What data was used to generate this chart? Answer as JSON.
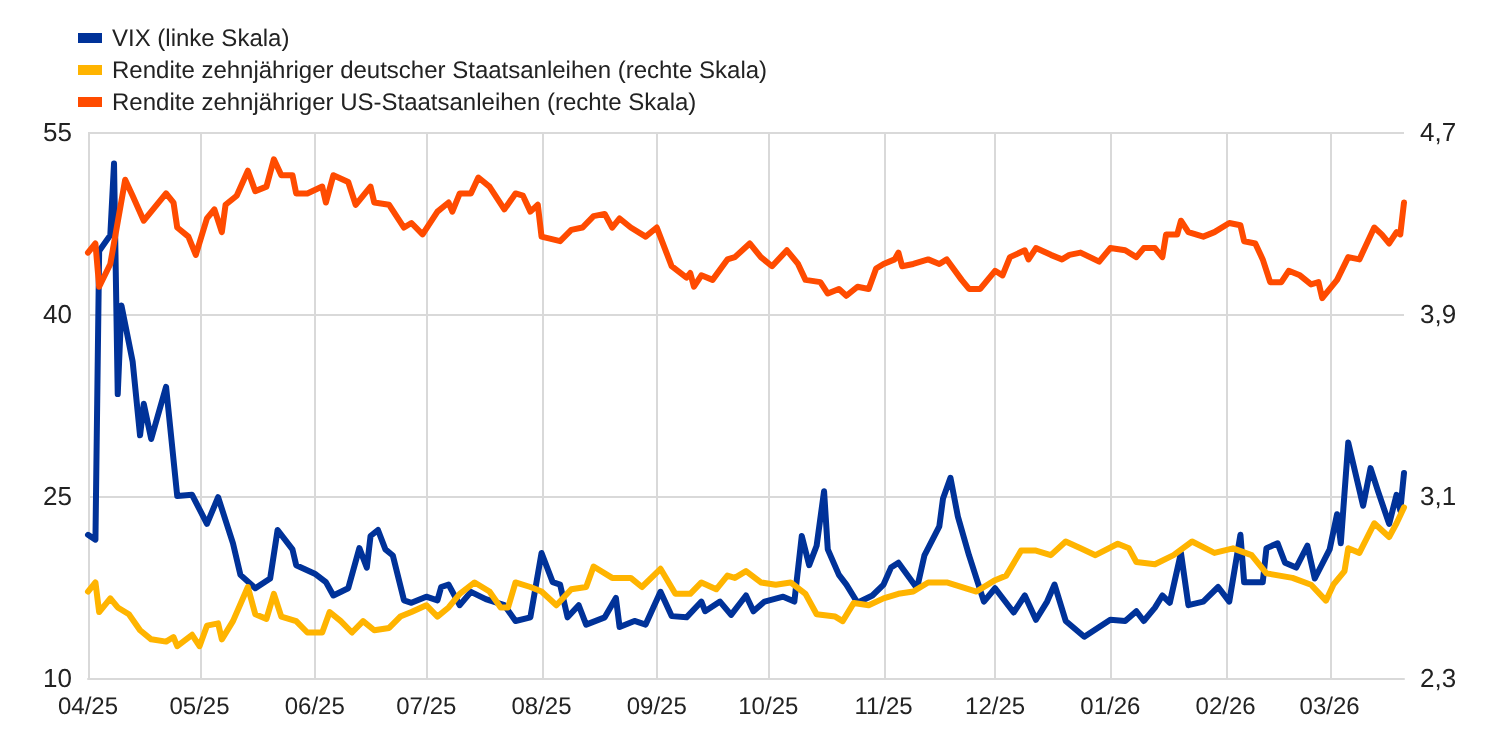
{
  "chart_data": {
    "type": "line",
    "legend": "top left",
    "grid": true,
    "marker": "none",
    "line_style": "solid",
    "xlim": [
      "2025-04-01",
      "2026-03-21"
    ],
    "xticks": [
      {
        "value": "2025-04-01",
        "label": "04/25"
      },
      {
        "value": "2025-05-01",
        "label": "05/25"
      },
      {
        "value": "2025-06-01",
        "label": "06/25"
      },
      {
        "value": "2025-07-01",
        "label": "07/25"
      },
      {
        "value": "2025-08-01",
        "label": "08/25"
      },
      {
        "value": "2025-09-01",
        "label": "09/25"
      },
      {
        "value": "2025-10-01",
        "label": "10/25"
      },
      {
        "value": "2025-11-01",
        "label": "11/25"
      },
      {
        "value": "2025-12-01",
        "label": "12/25"
      },
      {
        "value": "2026-01-01",
        "label": "01/26"
      },
      {
        "value": "2026-02-01",
        "label": "02/26"
      },
      {
        "value": "2026-03-01",
        "label": "03/26"
      }
    ],
    "ylim": [
      10,
      55
    ],
    "yticks": [
      10,
      25,
      40,
      55
    ],
    "y2lim": [
      2.3,
      4.7
    ],
    "y2ticks": [
      {
        "value": 2.3,
        "label": "2,3"
      },
      {
        "value": 3.1,
        "label": "3,1"
      },
      {
        "value": 3.9,
        "label": "3,9"
      },
      {
        "value": 4.7,
        "label": "4,7"
      }
    ],
    "series": [
      {
        "name": "VIX (linke Skala)",
        "color": "#003299",
        "x": [
          "2025-04-01",
          "2025-04-03",
          "2025-04-04",
          "2025-04-07",
          "2025-04-08",
          "2025-04-09",
          "2025-04-10",
          "2025-04-13",
          "2025-04-15",
          "2025-04-16",
          "2025-04-18",
          "2025-04-22",
          "2025-04-25",
          "2025-04-29",
          "2025-05-03",
          "2025-05-06",
          "2025-05-10",
          "2025-05-12",
          "2025-05-16",
          "2025-05-20",
          "2025-05-22",
          "2025-05-26",
          "2025-05-27",
          "2025-06-01",
          "2025-06-04",
          "2025-06-06",
          "2025-06-10",
          "2025-06-13",
          "2025-06-15",
          "2025-06-16",
          "2025-06-18",
          "2025-06-20",
          "2025-06-22",
          "2025-06-25",
          "2025-06-27",
          "2025-07-01",
          "2025-07-04",
          "2025-07-05",
          "2025-07-07",
          "2025-07-10",
          "2025-07-13",
          "2025-07-17",
          "2025-07-22",
          "2025-07-25",
          "2025-07-29",
          "2025-08-01",
          "2025-08-04",
          "2025-08-06",
          "2025-08-08",
          "2025-08-11",
          "2025-08-13",
          "2025-08-18",
          "2025-08-21",
          "2025-08-22",
          "2025-08-26",
          "2025-08-29",
          "2025-09-02",
          "2025-09-05",
          "2025-09-09",
          "2025-09-13",
          "2025-09-14",
          "2025-09-18",
          "2025-09-21",
          "2025-09-25",
          "2025-09-27",
          "2025-09-30",
          "2025-10-05",
          "2025-10-08",
          "2025-10-10",
          "2025-10-12",
          "2025-10-14",
          "2025-10-16",
          "2025-10-17",
          "2025-10-20",
          "2025-10-22",
          "2025-10-25",
          "2025-10-29",
          "2025-11-01",
          "2025-11-03",
          "2025-11-05",
          "2025-11-10",
          "2025-11-12",
          "2025-11-16",
          "2025-11-17",
          "2025-11-19",
          "2025-11-21",
          "2025-11-24",
          "2025-11-28",
          "2025-12-01",
          "2025-12-06",
          "2025-12-09",
          "2025-12-12",
          "2025-12-15",
          "2025-12-17",
          "2025-12-20",
          "2025-12-25",
          "2026-01-01",
          "2026-01-05",
          "2026-01-08",
          "2026-01-10",
          "2026-01-13",
          "2026-01-15",
          "2026-01-17",
          "2026-01-20",
          "2026-01-22",
          "2026-01-26",
          "2026-01-30",
          "2026-02-02",
          "2026-02-05",
          "2026-02-06",
          "2026-02-11",
          "2026-02-12",
          "2026-02-15",
          "2026-02-17",
          "2026-02-20",
          "2026-02-23",
          "2026-02-25",
          "2026-03-01",
          "2026-03-03",
          "2026-03-04",
          "2026-03-06",
          "2026-03-10",
          "2026-03-12",
          "2026-03-14",
          "2026-03-17",
          "2026-03-19",
          "2026-03-20",
          "2026-03-21"
        ],
        "values": [
          21.8,
          21.4,
          45.2,
          46.5,
          52.4,
          33.4,
          40.7,
          36.1,
          30.0,
          32.6,
          29.7,
          34.0,
          25.0,
          25.1,
          22.7,
          24.9,
          21.1,
          18.5,
          17.4,
          18.2,
          22.2,
          20.6,
          19.3,
          18.6,
          17.9,
          16.8,
          17.4,
          20.7,
          19.1,
          21.7,
          22.2,
          20.6,
          20.1,
          16.4,
          16.2,
          16.7,
          16.4,
          17.5,
          17.7,
          16.0,
          17.1,
          16.5,
          16.0,
          14.7,
          15.0,
          20.3,
          17.9,
          17.7,
          15.0,
          16.0,
          14.4,
          15.0,
          16.6,
          14.2,
          14.7,
          14.4,
          17.1,
          15.1,
          15.0,
          16.3,
          15.5,
          16.3,
          15.2,
          16.8,
          15.5,
          16.3,
          16.7,
          16.3,
          21.7,
          19.3,
          20.9,
          25.4,
          20.6,
          18.5,
          17.7,
          16.2,
          16.8,
          17.7,
          19.1,
          19.5,
          17.4,
          20.1,
          22.5,
          24.8,
          26.5,
          23.3,
          20.1,
          16.3,
          17.4,
          15.4,
          16.8,
          14.8,
          16.3,
          17.7,
          14.7,
          13.4,
          14.8,
          14.7,
          15.5,
          14.7,
          15.8,
          16.8,
          16.2,
          20.3,
          16.0,
          16.3,
          17.5,
          16.3,
          21.8,
          17.9,
          17.9,
          20.7,
          21.1,
          19.5,
          19.1,
          20.9,
          18.2,
          20.6,
          23.5,
          21.1,
          29.4,
          24.2,
          27.3,
          25.4,
          22.7,
          25.1,
          23.8,
          26.9
        ]
      },
      {
        "name": "Rendite zehnjähriger deutscher Staatsanleihen (rechte Skala)",
        "color": "#ffb400",
        "axis": "y2",
        "x": [
          "2025-04-01",
          "2025-04-03",
          "2025-04-04",
          "2025-04-07",
          "2025-04-09",
          "2025-04-12",
          "2025-04-15",
          "2025-04-18",
          "2025-04-22",
          "2025-04-24",
          "2025-04-25",
          "2025-04-29",
          "2025-05-01",
          "2025-05-03",
          "2025-05-06",
          "2025-05-07",
          "2025-05-10",
          "2025-05-14",
          "2025-05-16",
          "2025-05-19",
          "2025-05-21",
          "2025-05-23",
          "2025-05-27",
          "2025-05-30",
          "2025-06-03",
          "2025-06-05",
          "2025-06-08",
          "2025-06-11",
          "2025-06-14",
          "2025-06-17",
          "2025-06-21",
          "2025-06-24",
          "2025-06-27",
          "2025-07-01",
          "2025-07-04",
          "2025-07-07",
          "2025-07-10",
          "2025-07-14",
          "2025-07-18",
          "2025-07-21",
          "2025-07-23",
          "2025-07-25",
          "2025-07-29",
          "2025-08-01",
          "2025-08-05",
          "2025-08-09",
          "2025-08-13",
          "2025-08-15",
          "2025-08-20",
          "2025-08-25",
          "2025-08-28",
          "2025-09-02",
          "2025-09-06",
          "2025-09-10",
          "2025-09-13",
          "2025-09-17",
          "2025-09-20",
          "2025-09-22",
          "2025-09-25",
          "2025-09-29",
          "2025-10-03",
          "2025-10-07",
          "2025-10-11",
          "2025-10-14",
          "2025-10-19",
          "2025-10-21",
          "2025-10-24",
          "2025-10-28",
          "2025-11-01",
          "2025-11-05",
          "2025-11-09",
          "2025-11-13",
          "2025-11-18",
          "2025-11-26",
          "2025-12-01",
          "2025-12-04",
          "2025-12-08",
          "2025-12-12",
          "2025-12-16",
          "2025-12-20",
          "2025-12-24",
          "2025-12-28",
          "2026-01-03",
          "2026-01-06",
          "2026-01-08",
          "2026-01-13",
          "2026-01-18",
          "2026-01-23",
          "2026-01-29",
          "2026-02-03",
          "2026-02-08",
          "2026-02-12",
          "2026-02-19",
          "2026-02-24",
          "2026-02-28",
          "2026-03-02",
          "2026-03-05",
          "2026-03-06",
          "2026-03-09",
          "2026-03-13",
          "2026-03-17",
          "2026-03-19",
          "2026-03-21"
        ],
        "values": [
          2.68,
          2.72,
          2.59,
          2.65,
          2.61,
          2.58,
          2.51,
          2.47,
          2.46,
          2.48,
          2.44,
          2.49,
          2.44,
          2.53,
          2.54,
          2.47,
          2.55,
          2.7,
          2.58,
          2.56,
          2.67,
          2.57,
          2.55,
          2.5,
          2.5,
          2.59,
          2.55,
          2.5,
          2.55,
          2.51,
          2.52,
          2.57,
          2.59,
          2.62,
          2.57,
          2.61,
          2.67,
          2.72,
          2.68,
          2.61,
          2.61,
          2.72,
          2.7,
          2.68,
          2.62,
          2.69,
          2.7,
          2.79,
          2.74,
          2.74,
          2.7,
          2.78,
          2.67,
          2.67,
          2.72,
          2.69,
          2.75,
          2.74,
          2.77,
          2.72,
          2.71,
          2.72,
          2.67,
          2.58,
          2.57,
          2.55,
          2.63,
          2.62,
          2.65,
          2.67,
          2.68,
          2.72,
          2.72,
          2.68,
          2.73,
          2.75,
          2.86,
          2.86,
          2.84,
          2.9,
          2.87,
          2.84,
          2.89,
          2.87,
          2.81,
          2.8,
          2.84,
          2.9,
          2.85,
          2.87,
          2.84,
          2.76,
          2.74,
          2.71,
          2.64,
          2.71,
          2.77,
          2.87,
          2.85,
          2.98,
          2.92,
          2.98,
          3.05
        ]
      },
      {
        "name": "Rendite zehnjähriger US-Staatsanleihen (rechte Skala)",
        "color": "#ff4b00",
        "axis": "y2",
        "x": [
          "2025-04-01",
          "2025-04-03",
          "2025-04-04",
          "2025-04-07",
          "2025-04-11",
          "2025-04-13",
          "2025-04-16",
          "2025-04-18",
          "2025-04-22",
          "2025-04-24",
          "2025-04-25",
          "2025-04-28",
          "2025-04-30",
          "2025-05-03",
          "2025-05-05",
          "2025-05-07",
          "2025-05-08",
          "2025-05-11",
          "2025-05-14",
          "2025-05-16",
          "2025-05-19",
          "2025-05-21",
          "2025-05-23",
          "2025-05-26",
          "2025-05-27",
          "2025-05-30",
          "2025-06-03",
          "2025-06-04",
          "2025-06-06",
          "2025-06-10",
          "2025-06-12",
          "2025-06-16",
          "2025-06-17",
          "2025-06-21",
          "2025-06-25",
          "2025-06-27",
          "2025-06-30",
          "2025-07-04",
          "2025-07-07",
          "2025-07-08",
          "2025-07-10",
          "2025-07-13",
          "2025-07-15",
          "2025-07-18",
          "2025-07-22",
          "2025-07-25",
          "2025-07-27",
          "2025-07-29",
          "2025-07-31",
          "2025-08-01",
          "2025-08-06",
          "2025-08-09",
          "2025-08-12",
          "2025-08-15",
          "2025-08-18",
          "2025-08-20",
          "2025-08-22",
          "2025-08-25",
          "2025-08-29",
          "2025-09-01",
          "2025-09-05",
          "2025-09-09",
          "2025-09-10",
          "2025-09-11",
          "2025-09-13",
          "2025-09-16",
          "2025-09-20",
          "2025-09-22",
          "2025-09-26",
          "2025-09-29",
          "2025-10-02",
          "2025-10-06",
          "2025-10-09",
          "2025-10-11",
          "2025-10-15",
          "2025-10-17",
          "2025-10-20",
          "2025-10-22",
          "2025-10-25",
          "2025-10-28",
          "2025-10-30",
          "2025-11-01",
          "2025-11-04",
          "2025-11-05",
          "2025-11-06",
          "2025-11-09",
          "2025-11-13",
          "2025-11-16",
          "2025-11-18",
          "2025-11-22",
          "2025-11-24",
          "2025-11-27",
          "2025-12-01",
          "2025-12-03",
          "2025-12-05",
          "2025-12-09",
          "2025-12-10",
          "2025-12-12",
          "2025-12-16",
          "2025-12-19",
          "2025-12-21",
          "2025-12-24",
          "2025-12-29",
          "2026-01-01",
          "2026-01-05",
          "2026-01-08",
          "2026-01-10",
          "2026-01-13",
          "2026-01-15",
          "2026-01-16",
          "2026-01-19",
          "2026-01-20",
          "2026-01-22",
          "2026-01-26",
          "2026-01-29",
          "2026-02-02",
          "2026-02-05",
          "2026-02-06",
          "2026-02-09",
          "2026-02-11",
          "2026-02-13",
          "2026-02-16",
          "2026-02-18",
          "2026-02-21",
          "2026-02-24",
          "2026-02-26",
          "2026-02-27",
          "2026-03-03",
          "2026-03-06",
          "2026-03-09",
          "2026-03-13",
          "2026-03-15",
          "2026-03-17",
          "2026-03-19",
          "2026-03-20",
          "2026-03-21"
        ],
        "values": [
          4.17,
          4.21,
          4.02,
          4.12,
          4.49,
          4.42,
          4.31,
          4.35,
          4.43,
          4.39,
          4.28,
          4.24,
          4.16,
          4.32,
          4.36,
          4.26,
          4.38,
          4.42,
          4.53,
          4.44,
          4.46,
          4.58,
          4.51,
          4.51,
          4.43,
          4.43,
          4.46,
          4.39,
          4.51,
          4.48,
          4.38,
          4.46,
          4.39,
          4.38,
          4.28,
          4.3,
          4.25,
          4.35,
          4.39,
          4.35,
          4.43,
          4.43,
          4.5,
          4.46,
          4.36,
          4.43,
          4.42,
          4.35,
          4.38,
          4.24,
          4.22,
          4.27,
          4.28,
          4.33,
          4.34,
          4.28,
          4.32,
          4.28,
          4.24,
          4.28,
          4.11,
          4.06,
          4.08,
          4.02,
          4.07,
          4.05,
          4.14,
          4.15,
          4.21,
          4.15,
          4.11,
          4.18,
          4.12,
          4.05,
          4.04,
          3.99,
          4.01,
          3.98,
          4.02,
          4.01,
          4.1,
          4.12,
          4.14,
          4.17,
          4.11,
          4.12,
          4.14,
          4.12,
          4.14,
          4.05,
          4.01,
          4.01,
          4.09,
          4.07,
          4.15,
          4.18,
          4.14,
          4.19,
          4.16,
          4.14,
          4.16,
          4.17,
          4.13,
          4.19,
          4.18,
          4.15,
          4.19,
          4.19,
          4.15,
          4.25,
          4.25,
          4.31,
          4.26,
          4.24,
          4.26,
          4.3,
          4.29,
          4.22,
          4.21,
          4.14,
          4.04,
          4.04,
          4.09,
          4.07,
          4.03,
          4.04,
          3.97,
          4.05,
          4.15,
          4.14,
          4.28,
          4.25,
          4.21,
          4.26,
          4.25,
          4.39
        ]
      }
    ]
  }
}
